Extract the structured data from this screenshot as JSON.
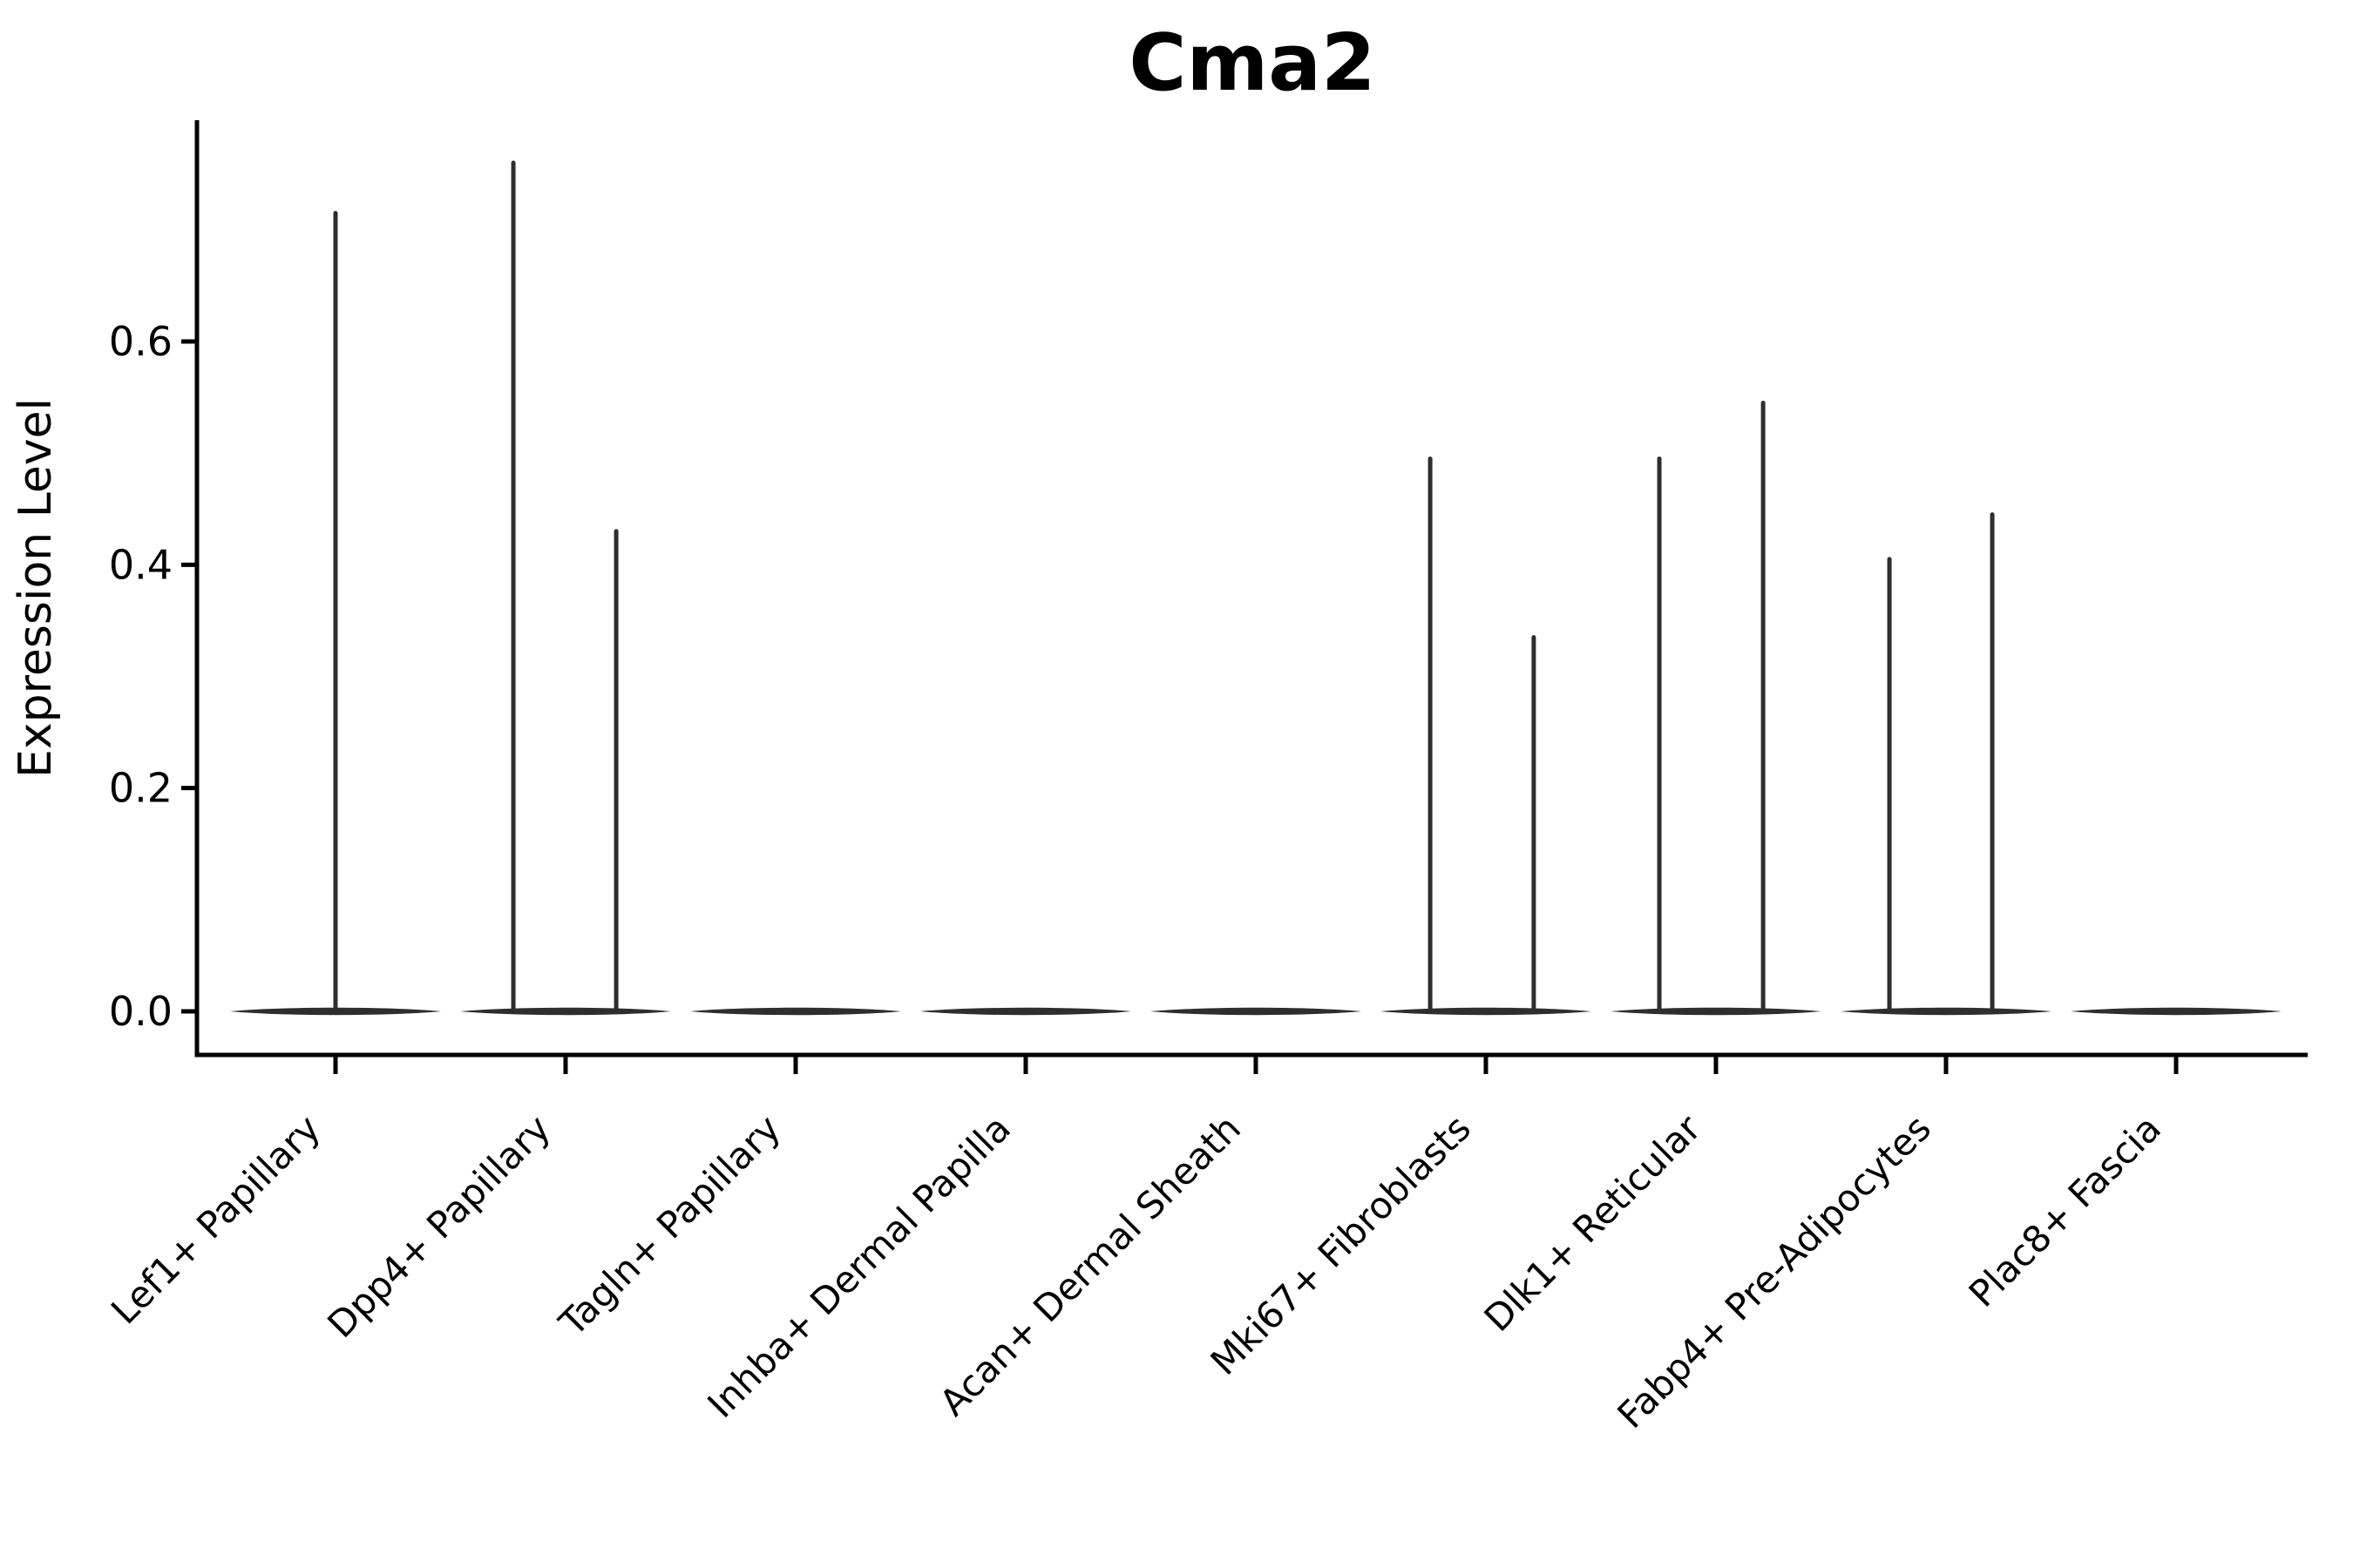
{
  "chart_data": {
    "type": "violin",
    "title": "Cma2",
    "xlabel": "",
    "ylabel": "Expression Level",
    "ylim": [
      -0.04,
      0.8
    ],
    "yticks": [
      0.0,
      0.2,
      0.4,
      0.6
    ],
    "ytick_labels": [
      "0.0",
      "0.2",
      "0.4",
      "0.6"
    ],
    "grid": false,
    "legend": null,
    "categories": [
      "Lef1+ Papillary",
      "Dpp4+ Papillary",
      "Tagln+ Papillary",
      "Inhba+ Dermal Papilla",
      "Acan+ Dermal Sheath",
      "Mki67+ Fibroblasts",
      "Dlk1+ Reticular",
      "Fabp4+ Pre-Adipocytes",
      "Plac8+ Fascia"
    ],
    "series": [
      {
        "category": "Lef1+ Papillary",
        "baseline_value": 0.0,
        "spikes": [
          {
            "offset": 0.0,
            "max": 0.715
          }
        ]
      },
      {
        "category": "Dpp4+ Papillary",
        "baseline_value": 0.0,
        "spikes": [
          {
            "offset": -0.227,
            "max": 0.76
          },
          {
            "offset": 0.22,
            "max": 0.43
          }
        ]
      },
      {
        "category": "Tagln+ Papillary",
        "baseline_value": 0.0,
        "spikes": []
      },
      {
        "category": "Inhba+ Dermal Papilla",
        "baseline_value": 0.0,
        "spikes": []
      },
      {
        "category": "Acan+ Dermal Sheath",
        "baseline_value": 0.0,
        "spikes": []
      },
      {
        "category": "Mki67+ Fibroblasts",
        "baseline_value": 0.0,
        "spikes": [
          {
            "offset": -0.242,
            "max": 0.495
          },
          {
            "offset": 0.208,
            "max": 0.335
          }
        ]
      },
      {
        "category": "Dlk1+ Reticular",
        "baseline_value": 0.0,
        "spikes": [
          {
            "offset": -0.246,
            "max": 0.495
          },
          {
            "offset": 0.205,
            "max": 0.545
          }
        ]
      },
      {
        "category": "Fabp4+ Pre-Adipocytes",
        "baseline_value": 0.0,
        "spikes": [
          {
            "offset": -0.246,
            "max": 0.405
          },
          {
            "offset": 0.201,
            "max": 0.445
          }
        ]
      },
      {
        "category": "Plac8+ Fascia",
        "baseline_value": 0.0,
        "spikes": []
      }
    ],
    "colors": {
      "violin": "#2e2e2e",
      "axis": "#000000",
      "text": "#000000",
      "background": "#ffffff"
    }
  }
}
